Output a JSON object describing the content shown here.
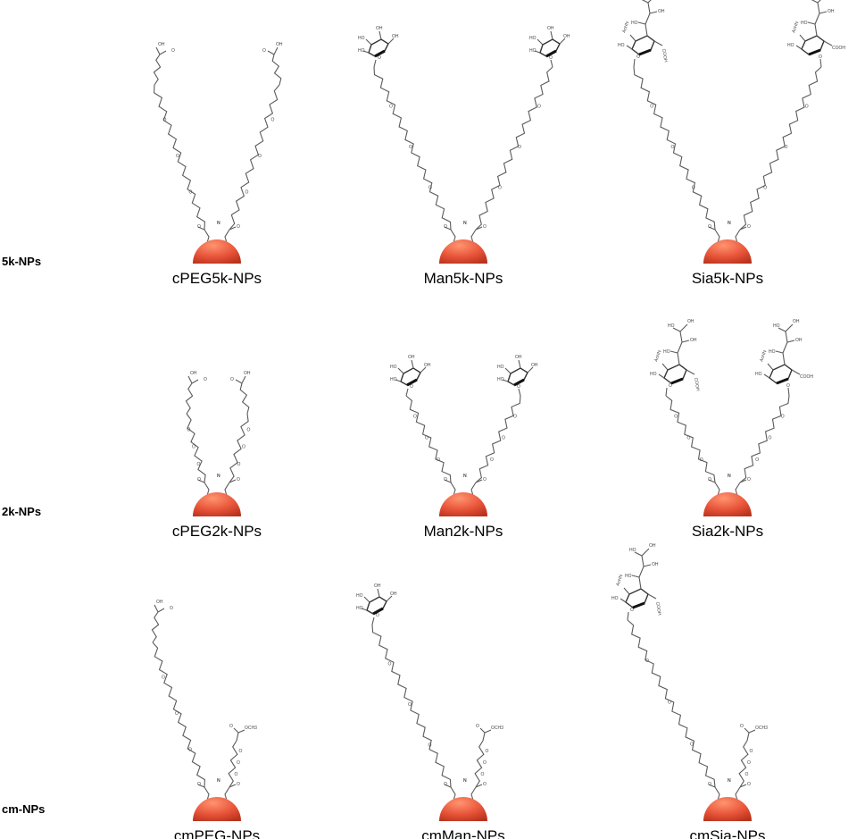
{
  "rows": [
    {
      "label": "5k-NPs",
      "panels": [
        {
          "label": "cPEG5k-NPs",
          "left": "acid",
          "right": "acid",
          "arm": "long"
        },
        {
          "label": "Man5k-NPs",
          "left": "man",
          "right": "man",
          "arm": "long"
        },
        {
          "label": "Sia5k-NPs",
          "left": "sia",
          "right": "sia",
          "arm": "long"
        }
      ]
    },
    {
      "label": "2k-NPs",
      "panels": [
        {
          "label": "cPEG2k-NPs",
          "left": "acid",
          "right": "acid",
          "arm": "short"
        },
        {
          "label": "Man2k-NPs",
          "left": "man",
          "right": "man",
          "arm": "short"
        },
        {
          "label": "Sia2k-NPs",
          "left": "sia",
          "right": "sia",
          "arm": "short"
        }
      ]
    },
    {
      "label": "cm-NPs",
      "panels": [
        {
          "label": "cmPEG-NPs",
          "left": "acid",
          "right": "ester",
          "arm": "cm"
        },
        {
          "label": "cmMan-NPs",
          "left": "man",
          "right": "ester",
          "arm": "cm"
        },
        {
          "label": "cmSia-NPs",
          "left": "sia",
          "right": "ester",
          "arm": "cm"
        }
      ]
    }
  ],
  "atoms": {
    "oh": "OH",
    "o": "O",
    "n": "N",
    "h": "H",
    "cooh": "COOH",
    "ho": "HO",
    "acnh": "AcHN",
    "ome": "OCH3"
  },
  "colors": {
    "particle": "#e8553a",
    "particle_dark": "#b8321c",
    "particle_light": "#ff9470",
    "bond": "#5a5a5a"
  }
}
